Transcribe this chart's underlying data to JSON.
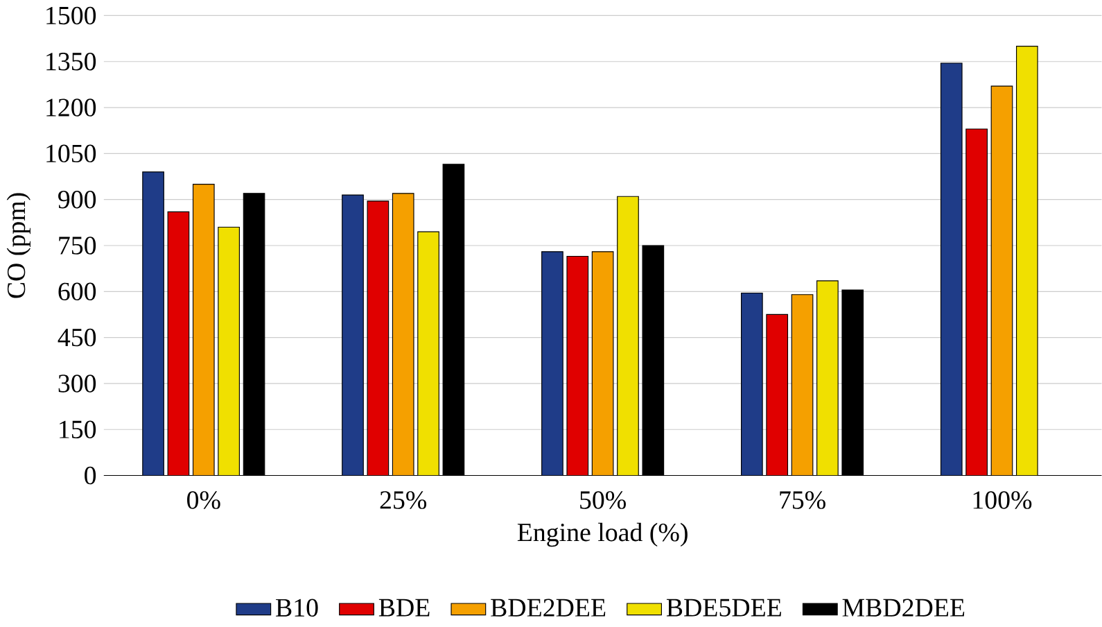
{
  "chart_data": {
    "type": "bar",
    "xlabel": "Engine load (%)",
    "ylabel": "CO (ppm)",
    "categories": [
      "0%",
      "25%",
      "50%",
      "75%",
      "100%"
    ],
    "series": [
      {
        "name": "B10",
        "color": "#1f3c88",
        "values": [
          990,
          915,
          730,
          595,
          1345
        ]
      },
      {
        "name": "BDE",
        "color": "#e00000",
        "values": [
          860,
          895,
          715,
          525,
          1130
        ]
      },
      {
        "name": "BDE2DEE",
        "color": "#f5a000",
        "values": [
          950,
          920,
          730,
          590,
          1270
        ]
      },
      {
        "name": "BDE5DEE",
        "color": "#f0e000",
        "values": [
          810,
          795,
          910,
          635,
          1400
        ]
      },
      {
        "name": "MBD2DEE",
        "color": "#000000",
        "values": [
          920,
          1015,
          750,
          605,
          null
        ]
      }
    ],
    "ylim": [
      0,
      1500
    ],
    "yticks": [
      0,
      150,
      300,
      450,
      600,
      750,
      900,
      1050,
      1200,
      1350,
      1500
    ],
    "grid": "y",
    "legend": "bottom"
  }
}
